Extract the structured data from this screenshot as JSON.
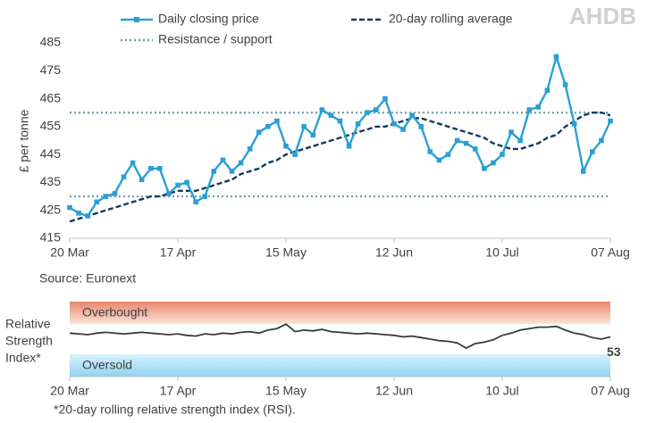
{
  "logo": "AHDB",
  "chart_data": [
    {
      "type": "line",
      "y_label": "£ per tonne",
      "source": "Source: Euronext",
      "categories": [
        "20 Mar",
        "22 Mar",
        "25 Mar",
        "27 Mar",
        "29 Mar",
        "01 Apr",
        "03 Apr",
        "05 Apr",
        "08 Apr",
        "10 Apr",
        "12 Apr",
        "15 Apr",
        "17 Apr",
        "19 Apr",
        "22 Apr",
        "24 Apr",
        "26 Apr",
        "29 Apr",
        "01 May",
        "03 May",
        "06 May",
        "08 May",
        "10 May",
        "13 May",
        "15 May",
        "17 May",
        "20 May",
        "22 May",
        "24 May",
        "27 May",
        "29 May",
        "31 May",
        "03 Jun",
        "05 Jun",
        "07 Jun",
        "10 Jun",
        "12 Jun",
        "14 Jun",
        "17 Jun",
        "19 Jun",
        "21 Jun",
        "24 Jun",
        "26 Jun",
        "28 Jun",
        "01 Jul",
        "03 Jul",
        "05 Jul",
        "08 Jul",
        "10 Jul",
        "12 Jul",
        "15 Jul",
        "17 Jul",
        "19 Jul",
        "22 Jul",
        "24 Jul",
        "26 Jul",
        "29 Jul",
        "31 Jul",
        "02 Aug",
        "05 Aug",
        "07 Aug"
      ],
      "xticks": [
        "20 Mar",
        "17 Apr",
        "15 May",
        "12 Jun",
        "10 Jul",
        "07 Aug"
      ],
      "ylim": [
        415,
        485
      ],
      "yticks": [
        415,
        425,
        435,
        445,
        455,
        465,
        475,
        485
      ],
      "series": [
        {
          "name": "Daily closing price",
          "color": "#2a9fd6",
          "style": "markers",
          "values": [
            426,
            424,
            423,
            428,
            430,
            431,
            437,
            442,
            436,
            440,
            440,
            431,
            434,
            435,
            428,
            430,
            439,
            443,
            439,
            442,
            447,
            453,
            455,
            457,
            448,
            445,
            455,
            452,
            461,
            459,
            457,
            448,
            456,
            460,
            461,
            465,
            456,
            454,
            459,
            455,
            446,
            443,
            445,
            450,
            449,
            447,
            440,
            442,
            445,
            453,
            450,
            461,
            462,
            468,
            480,
            470,
            456,
            439,
            446,
            450,
            457
          ]
        },
        {
          "name": "20-day rolling average",
          "color": "#123c5e",
          "style": "dashed",
          "values": [
            421,
            422,
            423,
            424,
            425,
            426,
            427,
            428,
            429,
            430,
            430,
            431,
            432,
            432,
            432,
            433,
            434,
            435,
            436,
            438,
            439,
            440,
            442,
            443,
            445,
            446,
            447,
            448,
            449,
            450,
            451,
            452,
            453,
            454,
            455,
            455,
            456,
            457,
            458,
            458,
            457,
            456,
            455,
            454,
            453,
            452,
            451,
            449,
            448,
            447,
            447,
            448,
            449,
            451,
            452,
            455,
            457,
            459,
            460,
            460,
            459
          ]
        }
      ],
      "reference_lines": {
        "name": "Resistance / support",
        "color": "#6f9ea8",
        "values": [
          460,
          430
        ]
      }
    },
    {
      "type": "line",
      "y_label": [
        "Relative",
        "Strength",
        "Index*"
      ],
      "zones": [
        "Overbought",
        "Oversold"
      ],
      "footnote": "*20-day rolling relative strength index (RSI).",
      "categories": [
        "20 Mar",
        "22 Mar",
        "25 Mar",
        "27 Mar",
        "29 Mar",
        "01 Apr",
        "03 Apr",
        "05 Apr",
        "08 Apr",
        "10 Apr",
        "12 Apr",
        "15 Apr",
        "17 Apr",
        "19 Apr",
        "22 Apr",
        "24 Apr",
        "26 Apr",
        "29 Apr",
        "01 May",
        "03 May",
        "06 May",
        "08 May",
        "10 May",
        "13 May",
        "15 May",
        "17 May",
        "20 May",
        "22 May",
        "24 May",
        "27 May",
        "29 May",
        "31 May",
        "03 Jun",
        "05 Jun",
        "07 Jun",
        "10 Jun",
        "12 Jun",
        "14 Jun",
        "17 Jun",
        "19 Jun",
        "21 Jun",
        "24 Jun",
        "26 Jun",
        "28 Jun",
        "01 Jul",
        "03 Jul",
        "05 Jul",
        "08 Jul",
        "10 Jul",
        "12 Jul",
        "15 Jul",
        "17 Jul",
        "19 Jul",
        "22 Jul",
        "24 Jul",
        "26 Jul",
        "29 Jul",
        "31 Jul",
        "02 Aug",
        "05 Aug",
        "07 Aug"
      ],
      "xticks": [
        "20 Mar",
        "17 Apr",
        "15 May",
        "12 Jun",
        "10 Jul",
        "07 Aug"
      ],
      "ylim": [
        0,
        100
      ],
      "color": "#3a3a3a",
      "values": [
        58,
        57,
        56,
        58,
        59,
        58,
        57,
        58,
        59,
        58,
        57,
        56,
        57,
        55,
        54,
        57,
        56,
        58,
        57,
        59,
        60,
        58,
        62,
        64,
        70,
        60,
        62,
        61,
        63,
        60,
        59,
        58,
        57,
        58,
        57,
        56,
        55,
        53,
        54,
        52,
        50,
        48,
        47,
        45,
        38,
        44,
        46,
        49,
        55,
        58,
        62,
        64,
        66,
        66,
        67,
        62,
        58,
        56,
        52,
        50,
        53
      ]
    }
  ]
}
